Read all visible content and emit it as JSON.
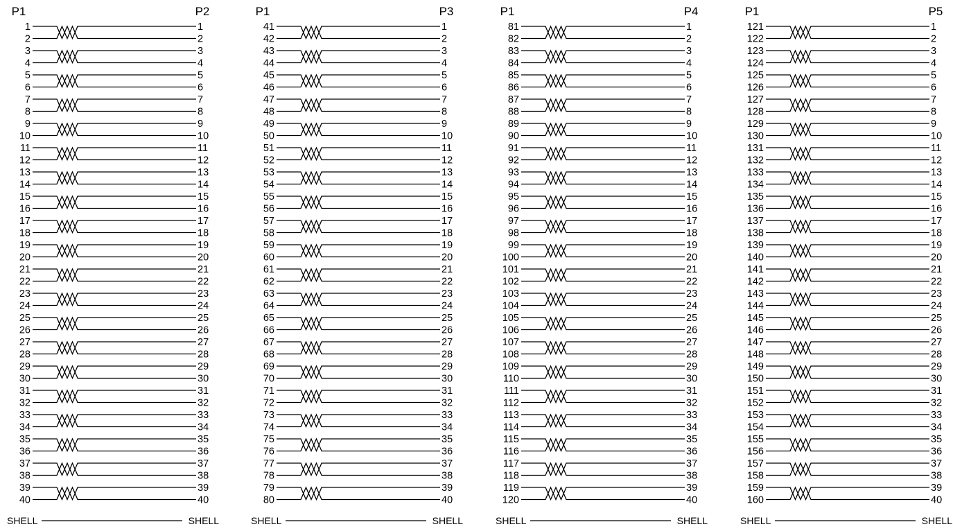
{
  "colors": {
    "ink": "#000000",
    "background": "#ffffff"
  },
  "panels": [
    {
      "left_header": "P1",
      "right_header": "P2",
      "left_start": 1,
      "right_start": 1,
      "pairs": 20,
      "shell_left": "SHELL",
      "shell_right": "SHELL"
    },
    {
      "left_header": "P1",
      "right_header": "P3",
      "left_start": 41,
      "right_start": 1,
      "pairs": 20,
      "shell_left": "SHELL",
      "shell_right": "SHELL"
    },
    {
      "left_header": "P1",
      "right_header": "P4",
      "left_start": 81,
      "right_start": 1,
      "pairs": 20,
      "shell_left": "SHELL",
      "shell_right": "SHELL"
    },
    {
      "left_header": "P1",
      "right_header": "P5",
      "left_start": 121,
      "right_start": 1,
      "pairs": 20,
      "shell_left": "SHELL",
      "shell_right": "SHELL"
    }
  ]
}
